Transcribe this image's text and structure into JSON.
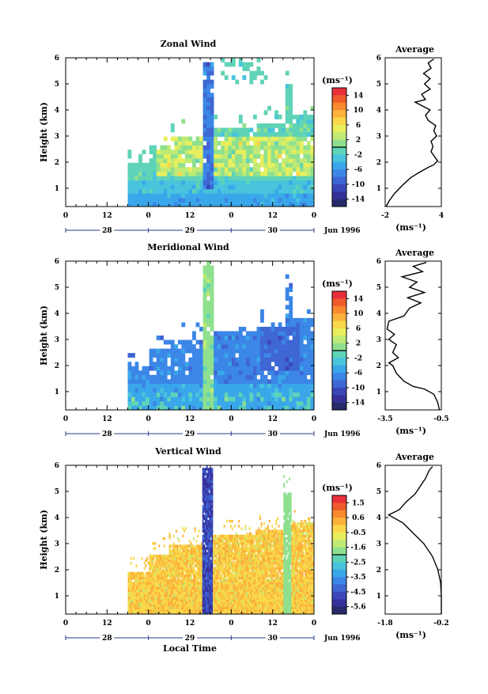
{
  "figure": {
    "shared_x_label": "Local Time",
    "date_tag": "Jun 1996",
    "unit_label": "(ms⁻¹)"
  },
  "chart_data": [
    {
      "type": "heatmap",
      "title": "Zonal Wind",
      "ylabel": "Height (km)",
      "xlabel": "",
      "ylim": [
        0.3,
        6
      ],
      "yticks": [
        1,
        2,
        3,
        4,
        5,
        6
      ],
      "xticks": [
        "0",
        "12",
        "0",
        "12",
        "0",
        "12",
        "0"
      ],
      "day_labels": [
        "28",
        "29",
        "30"
      ],
      "date_tag": "Jun 1996",
      "colorbar": {
        "label": "(ms⁻¹)",
        "ticks": [
          "14",
          "10",
          "6",
          "2",
          "-2",
          "-6",
          "-10",
          "-14"
        ],
        "colors": [
          "#e8303a",
          "#ef5a2c",
          "#f8892e",
          "#fbb13a",
          "#f8d84a",
          "#e8ef5c",
          "#bfea74",
          "#8ee08e",
          "#5fd3b7",
          "#48c4dc",
          "#3aa7ea",
          "#3b86e6",
          "#3e66d4",
          "#3b46b8",
          "#36309a",
          "#262a6a"
        ]
      },
      "data_start_local_hour": 18,
      "average_profile": {
        "title": "Average",
        "xlabel": "(ms⁻¹)",
        "xticks": [
          "-2",
          "4"
        ],
        "xlim": [
          -2,
          4
        ],
        "ylim": [
          0.3,
          6
        ],
        "yticks": [
          1,
          2,
          3,
          4,
          5,
          6
        ],
        "points": [
          [
            -1.9,
            0.3
          ],
          [
            -1.6,
            0.5
          ],
          [
            -1.0,
            0.8
          ],
          [
            -0.2,
            1.1
          ],
          [
            0.7,
            1.4
          ],
          [
            1.6,
            1.6
          ],
          [
            2.6,
            1.8
          ],
          [
            3.2,
            1.9
          ],
          [
            3.6,
            2.05
          ],
          [
            3.3,
            2.2
          ],
          [
            2.9,
            2.4
          ],
          [
            3.1,
            2.6
          ],
          [
            2.9,
            2.8
          ],
          [
            3.5,
            3.0
          ],
          [
            3.2,
            3.2
          ],
          [
            3.4,
            3.4
          ],
          [
            2.6,
            3.6
          ],
          [
            2.3,
            3.8
          ],
          [
            2.8,
            4.0
          ],
          [
            1.2,
            4.3
          ],
          [
            2.3,
            4.4
          ],
          [
            1.9,
            4.6
          ],
          [
            2.8,
            4.8
          ],
          [
            2.2,
            5.0
          ],
          [
            2.8,
            5.2
          ],
          [
            2.1,
            5.4
          ],
          [
            2.9,
            5.6
          ],
          [
            2.6,
            5.8
          ],
          [
            3.2,
            5.95
          ]
        ]
      }
    },
    {
      "type": "heatmap",
      "title": "Meridional Wind",
      "ylabel": "Height (km)",
      "xlabel": "",
      "ylim": [
        0.3,
        6
      ],
      "yticks": [
        1,
        2,
        3,
        4,
        5,
        6
      ],
      "xticks": [
        "0",
        "12",
        "0",
        "12",
        "0",
        "12",
        "0"
      ],
      "day_labels": [
        "28",
        "29",
        "30"
      ],
      "date_tag": "Jun 1996",
      "colorbar": {
        "label": "(ms⁻¹)",
        "ticks": [
          "14",
          "10",
          "6",
          "2",
          "-2",
          "-6",
          "-10",
          "-14"
        ],
        "colors": [
          "#e8303a",
          "#ef5a2c",
          "#f8892e",
          "#fbb13a",
          "#f8d84a",
          "#e8ef5c",
          "#bfea74",
          "#8ee08e",
          "#5fd3b7",
          "#48c4dc",
          "#3aa7ea",
          "#3b86e6",
          "#3e66d4",
          "#3b46b8",
          "#36309a",
          "#262a6a"
        ]
      },
      "data_start_local_hour": 18,
      "average_profile": {
        "title": "Average",
        "xlabel": "(ms⁻¹)",
        "xticks": [
          "-3.5",
          "-0.5"
        ],
        "xlim": [
          -3.5,
          -0.5
        ],
        "ylim": [
          0.3,
          6
        ],
        "yticks": [
          1,
          2,
          3,
          4,
          5,
          6
        ],
        "points": [
          [
            -0.6,
            0.3
          ],
          [
            -0.7,
            0.6
          ],
          [
            -0.9,
            0.9
          ],
          [
            -1.4,
            1.1
          ],
          [
            -2.0,
            1.2
          ],
          [
            -2.5,
            1.4
          ],
          [
            -2.9,
            1.7
          ],
          [
            -3.1,
            2.0
          ],
          [
            -3.3,
            2.1
          ],
          [
            -2.8,
            2.3
          ],
          [
            -3.1,
            2.5
          ],
          [
            -2.9,
            2.8
          ],
          [
            -3.3,
            3.0
          ],
          [
            -3.0,
            3.2
          ],
          [
            -3.4,
            3.4
          ],
          [
            -3.3,
            3.7
          ],
          [
            -2.5,
            3.9
          ],
          [
            -2.2,
            4.2
          ],
          [
            -1.6,
            4.4
          ],
          [
            -2.3,
            4.6
          ],
          [
            -1.4,
            4.8
          ],
          [
            -2.2,
            5.0
          ],
          [
            -1.8,
            5.2
          ],
          [
            -2.6,
            5.4
          ],
          [
            -1.5,
            5.6
          ],
          [
            -2.0,
            5.8
          ],
          [
            -1.3,
            5.95
          ]
        ]
      }
    },
    {
      "type": "heatmap",
      "title": "Vertical Wind",
      "ylabel": "Height (km)",
      "xlabel": "Local Time",
      "ylim": [
        0.3,
        6
      ],
      "yticks": [
        1,
        2,
        3,
        4,
        5,
        6
      ],
      "xticks": [
        "0",
        "12",
        "0",
        "12",
        "0",
        "12",
        "0"
      ],
      "day_labels": [
        "28",
        "29",
        "30"
      ],
      "date_tag": "Jun 1996",
      "colorbar": {
        "label": "(ms⁻¹)",
        "ticks": [
          "1.5",
          "0.6",
          "-0.5",
          "-1.6",
          "-2.5",
          "-3.5",
          "-4.5",
          "-5.6"
        ],
        "colors": [
          "#e8303a",
          "#ef5a2c",
          "#f8892e",
          "#fbb13a",
          "#f8d84a",
          "#e8ef5c",
          "#bfea74",
          "#8ee08e",
          "#5fd3b7",
          "#48c4dc",
          "#3aa7ea",
          "#3b86e6",
          "#3e66d4",
          "#3b46b8",
          "#36309a",
          "#262a6a"
        ]
      },
      "data_start_local_hour": 18,
      "average_profile": {
        "title": "Average",
        "xlabel": "(ms⁻¹)",
        "xticks": [
          "-1.8",
          "-0.2"
        ],
        "xlim": [
          -1.8,
          -0.2
        ],
        "ylim": [
          0.3,
          6
        ],
        "yticks": [
          1,
          2,
          3,
          4,
          5,
          6
        ],
        "points": [
          [
            -0.2,
            0.3
          ],
          [
            -0.2,
            1.0
          ],
          [
            -0.22,
            1.5
          ],
          [
            -0.3,
            2.0
          ],
          [
            -0.45,
            2.5
          ],
          [
            -0.7,
            3.0
          ],
          [
            -1.0,
            3.4
          ],
          [
            -1.3,
            3.8
          ],
          [
            -1.7,
            4.1
          ],
          [
            -1.4,
            4.3
          ],
          [
            -1.2,
            4.6
          ],
          [
            -0.95,
            4.9
          ],
          [
            -0.8,
            5.2
          ],
          [
            -0.65,
            5.5
          ],
          [
            -0.55,
            5.8
          ],
          [
            -0.45,
            5.95
          ]
        ]
      }
    }
  ]
}
